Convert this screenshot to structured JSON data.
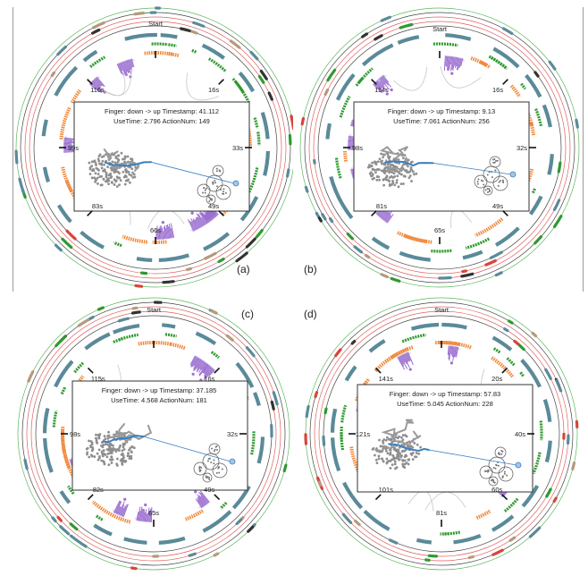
{
  "figure": {
    "panels": [
      {
        "id": "a",
        "letter": "(a)",
        "start_label": "Start",
        "info_line1": "Finger: down -> up Timestamp: 41.112",
        "info_line2": "UseTime: 2.796 ActionNum: 149",
        "time_marks": [
          "16s",
          "33s",
          "49s",
          "66s",
          "83s",
          "99s",
          "116s"
        ],
        "seed": 11
      },
      {
        "id": "b",
        "letter": "(b)",
        "start_label": "Start",
        "info_line1": "Finger: down -> up Timestamp: 9.13",
        "info_line2": "UseTime: 7.061 ActionNum: 256",
        "time_marks": [
          "16s",
          "32s",
          "49s",
          "65s",
          "81s",
          "98s",
          "114s"
        ],
        "seed": 23
      },
      {
        "id": "c",
        "letter": "(c)",
        "start_label": "Start",
        "info_line1": "Finger: down -> up Timestamp: 37.185",
        "info_line2": "UseTime: 4.568 ActionNum: 181",
        "time_marks": [
          "16s",
          "32s",
          "49s",
          "65s",
          "82s",
          "98s",
          "115s"
        ],
        "seed": 37
      },
      {
        "id": "d",
        "letter": "(d)",
        "start_label": "Start",
        "info_line1": "Finger: down -> up Timestamp: 57.83",
        "info_line2": "UseTime: 5.045 ActionNum: 228",
        "time_marks": [
          "20s",
          "40s",
          "60s",
          "81s",
          "101s",
          "121s",
          "141s"
        ],
        "seed": 53
      }
    ],
    "colors": {
      "orange": "#f0883a",
      "purple": "#9b6fd0",
      "green": "#2e9a2e",
      "teal": "#5a8a99",
      "red": "#d9443a",
      "dark": "#333333",
      "tan": "#b39a7a",
      "ring_red": "#e06060",
      "ring_green": "#5cb85c",
      "ring_dark": "#444444",
      "trace_blue": "#3a7fc0",
      "scatter_gray": "#8e8e8e"
    }
  }
}
